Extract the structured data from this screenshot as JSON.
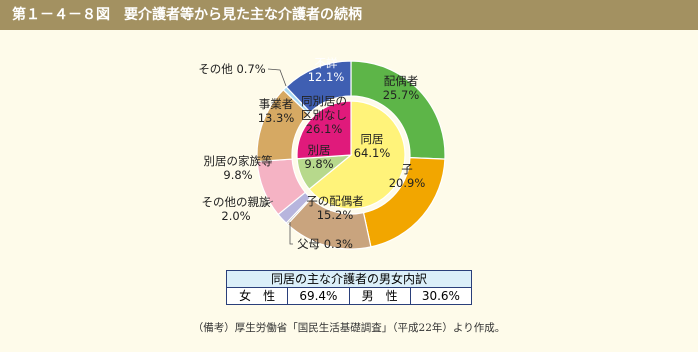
{
  "chart_data": {
    "type": "sunburst",
    "title": "第１－４－８図　要介護者等から見た主な介護者の続柄",
    "outer": {
      "categories": [
        "配偶者",
        "子",
        "子の配偶者",
        "父母",
        "その他の親族",
        "別居の家族等",
        "事業者",
        "その他",
        "不詳"
      ],
      "values": [
        25.7,
        20.9,
        15.2,
        0.3,
        2.0,
        9.8,
        13.3,
        0.7,
        12.1
      ],
      "value_labels": [
        "25.7%",
        "20.9%",
        "15.2%",
        "0.3%",
        "2.0%",
        "9.8%",
        "13.3%",
        "0.7%",
        "12.1%"
      ],
      "colors": [
        "#5db548",
        "#f2a600",
        "#c9a47e",
        "#9a9a9a",
        "#b7b5dd",
        "#f5b3c4",
        "#d6a963",
        "#a9d9f2",
        "#3f5fb2"
      ]
    },
    "inner": {
      "categories": [
        "同居",
        "別居",
        "同別居の区別なし"
      ],
      "values": [
        64.1,
        9.8,
        26.1
      ],
      "value_labels": [
        "64.1%",
        "9.8%",
        "26.1%"
      ],
      "colors": [
        "#fff37a",
        "#b7d98c",
        "#e01a7b"
      ]
    }
  },
  "breakdown": {
    "title": "同居の主な介護者の男女内訳",
    "rows": [
      [
        "女　性",
        "69.4%"
      ],
      [
        "男　性",
        "30.6%"
      ]
    ]
  },
  "note": "（備考）厚生労働省「国民生活基礎調査」（平成22年）より作成。"
}
